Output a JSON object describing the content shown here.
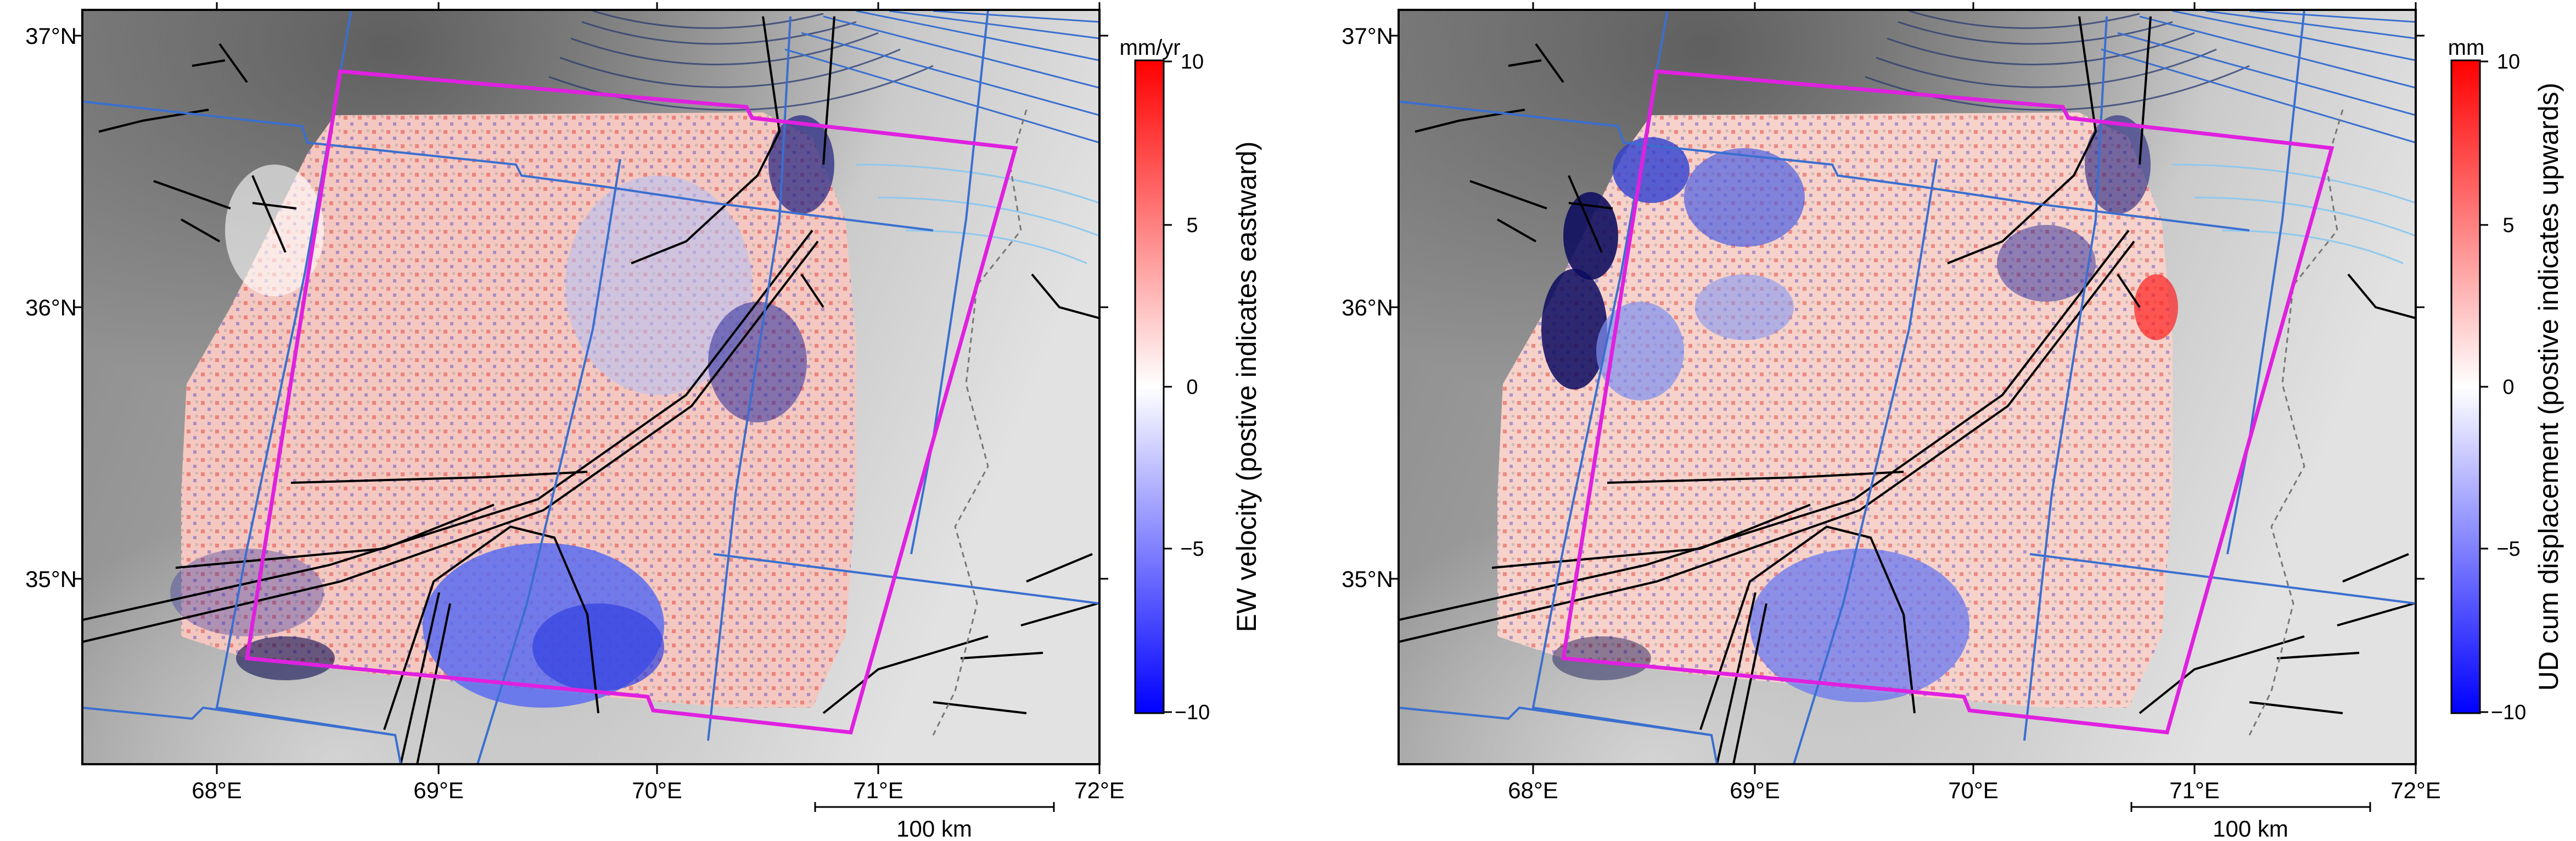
{
  "panels": [
    {
      "id": "ew",
      "colorbar": {
        "unit": "mm/yr",
        "title": "EW velocity (postive indicates eastward)",
        "ticks": [
          "10",
          "5",
          "0",
          "−5",
          "−10"
        ]
      }
    },
    {
      "id": "ud",
      "colorbar": {
        "unit": "mm",
        "title": "UD cum displacement (postive indicates upwards)",
        "ticks": [
          "10",
          "5",
          "0",
          "−5",
          "−10"
        ]
      }
    }
  ],
  "lat_labels": [
    "37°N",
    "36°N",
    "35°N"
  ],
  "lon_labels": [
    "68°E",
    "69°E",
    "70°E",
    "71°E",
    "72°E"
  ],
  "scale_bar": "100 km",
  "colors": {
    "frame": "#e020e0",
    "track_lines": "#3a6fd0",
    "contours_light": "#8fc8ee",
    "faults": "#000000",
    "positive": "#ff0000",
    "negative": "#0000ff"
  }
}
